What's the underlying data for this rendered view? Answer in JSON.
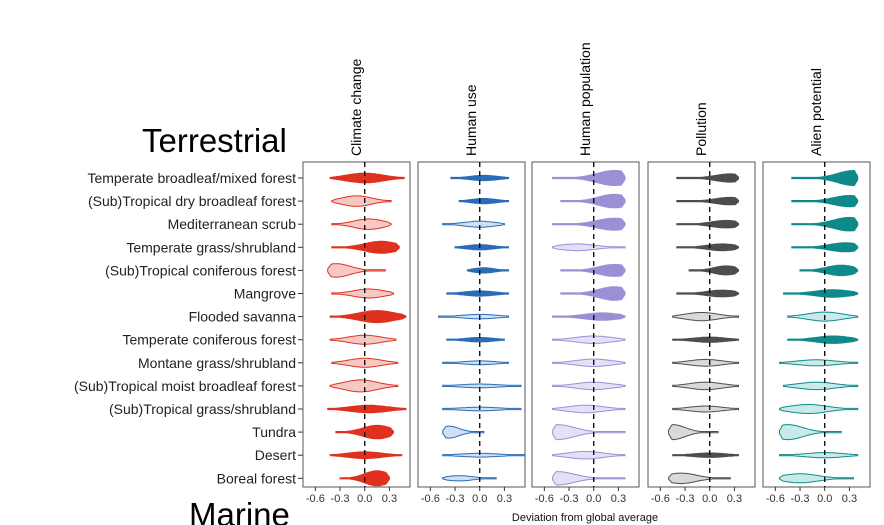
{
  "chart_data": {
    "type": "violin",
    "section_label": "Terrestrial",
    "next_section_label": "Marine",
    "xlabel": "Deviation from global average",
    "xlim": [
      -0.75,
      0.55
    ],
    "x_ticks": [
      -0.6,
      -0.3,
      0.0,
      0.3
    ],
    "x_tick_labels": [
      "-0.6",
      "-0.3",
      "0.0",
      "0.3"
    ],
    "reference_line_x": 0.0,
    "biomes": [
      "Temperate broadleaf/mixed forest",
      "(Sub)Tropical dry broadleaf forest",
      "Mediterranean scrub",
      "Temperate grass/shrubland",
      "(Sub)Tropical coniferous forest",
      "Mangrove",
      "Flooded savanna",
      "Temperate coniferous forest",
      "Montane grass/shrubland",
      "(Sub)Tropical moist broadleaf forest",
      "(Sub)Tropical grass/shrubland",
      "Tundra",
      "Desert",
      "Boreal forest"
    ],
    "panels": [
      {
        "title": "Climate  change",
        "color": "#e0301e",
        "light_color": "#f6c8c3",
        "violins": [
          {
            "min": -0.42,
            "max": 0.48,
            "center": 0.0,
            "width": 0.65,
            "fill": "dark"
          },
          {
            "min": -0.4,
            "max": 0.32,
            "center": -0.1,
            "width": 0.7,
            "fill": "light"
          },
          {
            "min": -0.4,
            "max": 0.32,
            "center": 0.05,
            "width": 0.7,
            "fill": "light"
          },
          {
            "min": -0.4,
            "max": 0.42,
            "center": 0.2,
            "width": 0.8,
            "fill": "dark"
          },
          {
            "min": -0.45,
            "max": 0.25,
            "center": -0.35,
            "width": 0.9,
            "fill": "light"
          },
          {
            "min": -0.4,
            "max": 0.35,
            "center": 0.05,
            "width": 0.6,
            "fill": "light"
          },
          {
            "min": -0.42,
            "max": 0.5,
            "center": 0.15,
            "width": 0.8,
            "fill": "dark"
          },
          {
            "min": -0.42,
            "max": 0.38,
            "center": 0.0,
            "width": 0.6,
            "fill": "light"
          },
          {
            "min": -0.4,
            "max": 0.4,
            "center": 0.0,
            "width": 0.6,
            "fill": "light"
          },
          {
            "min": -0.42,
            "max": 0.4,
            "center": -0.05,
            "width": 0.8,
            "fill": "light"
          },
          {
            "min": -0.45,
            "max": 0.5,
            "center": 0.05,
            "width": 0.5,
            "fill": "dark"
          },
          {
            "min": -0.35,
            "max": 0.35,
            "center": 0.15,
            "width": 0.9,
            "fill": "dark"
          },
          {
            "min": -0.42,
            "max": 0.45,
            "center": 0.0,
            "width": 0.45,
            "fill": "dark"
          },
          {
            "min": -0.3,
            "max": 0.3,
            "center": 0.15,
            "width": 1.0,
            "fill": "dark"
          }
        ]
      },
      {
        "title": "Human  use",
        "color": "#2a6bb8",
        "light_color": "#cfe0f3",
        "violins": [
          {
            "min": -0.35,
            "max": 0.35,
            "center": 0.05,
            "width": 0.35,
            "fill": "dark"
          },
          {
            "min": -0.25,
            "max": 0.35,
            "center": 0.05,
            "width": 0.35,
            "fill": "dark"
          },
          {
            "min": -0.45,
            "max": 0.3,
            "center": 0.0,
            "width": 0.4,
            "fill": "light"
          },
          {
            "min": -0.3,
            "max": 0.35,
            "center": 0.0,
            "width": 0.35,
            "fill": "dark"
          },
          {
            "min": -0.15,
            "max": 0.35,
            "center": 0.05,
            "width": 0.35,
            "fill": "dark"
          },
          {
            "min": -0.4,
            "max": 0.35,
            "center": 0.0,
            "width": 0.35,
            "fill": "dark"
          },
          {
            "min": -0.5,
            "max": 0.35,
            "center": 0.0,
            "width": 0.3,
            "fill": "light"
          },
          {
            "min": -0.4,
            "max": 0.3,
            "center": 0.0,
            "width": 0.3,
            "fill": "dark"
          },
          {
            "min": -0.45,
            "max": 0.35,
            "center": 0.0,
            "width": 0.25,
            "fill": "light"
          },
          {
            "min": -0.45,
            "max": 0.5,
            "center": 0.0,
            "width": 0.25,
            "fill": "light"
          },
          {
            "min": -0.45,
            "max": 0.5,
            "center": 0.0,
            "width": 0.25,
            "fill": "light"
          },
          {
            "min": -0.45,
            "max": 0.05,
            "center": -0.38,
            "width": 0.8,
            "fill": "light"
          },
          {
            "min": -0.45,
            "max": 0.55,
            "center": 0.0,
            "width": 0.25,
            "fill": "light"
          },
          {
            "min": -0.45,
            "max": 0.2,
            "center": -0.25,
            "width": 0.35,
            "fill": "light"
          }
        ]
      },
      {
        "title": "Human  population",
        "color": "#9b8fd6",
        "light_color": "#e4e0f5",
        "violins": [
          {
            "min": -0.5,
            "max": 0.38,
            "center": 0.25,
            "width": 1.0,
            "fill": "dark"
          },
          {
            "min": -0.4,
            "max": 0.38,
            "center": 0.25,
            "width": 0.9,
            "fill": "dark"
          },
          {
            "min": -0.5,
            "max": 0.38,
            "center": 0.25,
            "width": 0.8,
            "fill": "dark"
          },
          {
            "min": -0.5,
            "max": 0.38,
            "center": -0.2,
            "width": 0.45,
            "fill": "light"
          },
          {
            "min": -0.4,
            "max": 0.38,
            "center": 0.25,
            "width": 0.8,
            "fill": "dark"
          },
          {
            "min": -0.4,
            "max": 0.38,
            "center": 0.25,
            "width": 0.9,
            "fill": "dark"
          },
          {
            "min": -0.5,
            "max": 0.38,
            "center": 0.1,
            "width": 0.5,
            "fill": "dark"
          },
          {
            "min": -0.5,
            "max": 0.38,
            "center": 0.0,
            "width": 0.5,
            "fill": "light"
          },
          {
            "min": -0.5,
            "max": 0.38,
            "center": 0.0,
            "width": 0.5,
            "fill": "light"
          },
          {
            "min": -0.5,
            "max": 0.38,
            "center": 0.0,
            "width": 0.5,
            "fill": "light"
          },
          {
            "min": -0.5,
            "max": 0.38,
            "center": -0.1,
            "width": 0.5,
            "fill": "light"
          },
          {
            "min": -0.5,
            "max": 0.38,
            "center": -0.45,
            "width": 1.0,
            "fill": "light"
          },
          {
            "min": -0.5,
            "max": 0.38,
            "center": -0.1,
            "width": 0.5,
            "fill": "light"
          },
          {
            "min": -0.5,
            "max": 0.38,
            "center": -0.45,
            "width": 0.9,
            "fill": "light"
          }
        ]
      },
      {
        "title": "Pollution",
        "color": "#4d4d4d",
        "light_color": "#d9d9d9",
        "violins": [
          {
            "min": -0.4,
            "max": 0.35,
            "center": 0.25,
            "width": 0.55,
            "fill": "dark"
          },
          {
            "min": -0.4,
            "max": 0.35,
            "center": 0.25,
            "width": 0.5,
            "fill": "dark"
          },
          {
            "min": -0.4,
            "max": 0.35,
            "center": 0.2,
            "width": 0.5,
            "fill": "dark"
          },
          {
            "min": -0.4,
            "max": 0.35,
            "center": 0.15,
            "width": 0.45,
            "fill": "dark"
          },
          {
            "min": -0.25,
            "max": 0.35,
            "center": 0.2,
            "width": 0.6,
            "fill": "dark"
          },
          {
            "min": -0.4,
            "max": 0.35,
            "center": 0.15,
            "width": 0.45,
            "fill": "dark"
          },
          {
            "min": -0.45,
            "max": 0.35,
            "center": -0.1,
            "width": 0.55,
            "fill": "light"
          },
          {
            "min": -0.45,
            "max": 0.35,
            "center": 0.0,
            "width": 0.35,
            "fill": "dark"
          },
          {
            "min": -0.45,
            "max": 0.35,
            "center": -0.05,
            "width": 0.45,
            "fill": "light"
          },
          {
            "min": -0.45,
            "max": 0.35,
            "center": -0.05,
            "width": 0.5,
            "fill": "light"
          },
          {
            "min": -0.45,
            "max": 0.35,
            "center": -0.05,
            "width": 0.4,
            "fill": "light"
          },
          {
            "min": -0.5,
            "max": 0.1,
            "center": -0.45,
            "width": 1.0,
            "fill": "light"
          },
          {
            "min": -0.45,
            "max": 0.35,
            "center": 0.0,
            "width": 0.3,
            "fill": "dark"
          },
          {
            "min": -0.5,
            "max": 0.25,
            "center": -0.35,
            "width": 0.7,
            "fill": "light"
          }
        ]
      },
      {
        "title": "Alien  potential",
        "color": "#0f8a8a",
        "light_color": "#c9eaea",
        "violins": [
          {
            "min": -0.4,
            "max": 0.4,
            "center": 0.35,
            "width": 1.0,
            "fill": "dark"
          },
          {
            "min": -0.4,
            "max": 0.4,
            "center": 0.3,
            "width": 0.75,
            "fill": "dark"
          },
          {
            "min": -0.4,
            "max": 0.4,
            "center": 0.3,
            "width": 0.9,
            "fill": "dark"
          },
          {
            "min": -0.4,
            "max": 0.4,
            "center": 0.25,
            "width": 0.6,
            "fill": "dark"
          },
          {
            "min": -0.3,
            "max": 0.4,
            "center": 0.2,
            "width": 0.7,
            "fill": "dark"
          },
          {
            "min": -0.5,
            "max": 0.4,
            "center": 0.1,
            "width": 0.5,
            "fill": "dark"
          },
          {
            "min": -0.45,
            "max": 0.4,
            "center": 0.0,
            "width": 0.6,
            "fill": "light"
          },
          {
            "min": -0.45,
            "max": 0.4,
            "center": 0.1,
            "width": 0.5,
            "fill": "dark"
          },
          {
            "min": -0.55,
            "max": 0.4,
            "center": -0.1,
            "width": 0.4,
            "fill": "light"
          },
          {
            "min": -0.5,
            "max": 0.4,
            "center": -0.1,
            "width": 0.5,
            "fill": "light"
          },
          {
            "min": -0.55,
            "max": 0.4,
            "center": -0.2,
            "width": 0.6,
            "fill": "light"
          },
          {
            "min": -0.55,
            "max": 0.2,
            "center": -0.45,
            "width": 1.0,
            "fill": "light"
          },
          {
            "min": -0.55,
            "max": 0.4,
            "center": 0.0,
            "width": 0.35,
            "fill": "light"
          },
          {
            "min": -0.55,
            "max": 0.35,
            "center": -0.3,
            "width": 0.6,
            "fill": "light"
          }
        ]
      }
    ]
  }
}
